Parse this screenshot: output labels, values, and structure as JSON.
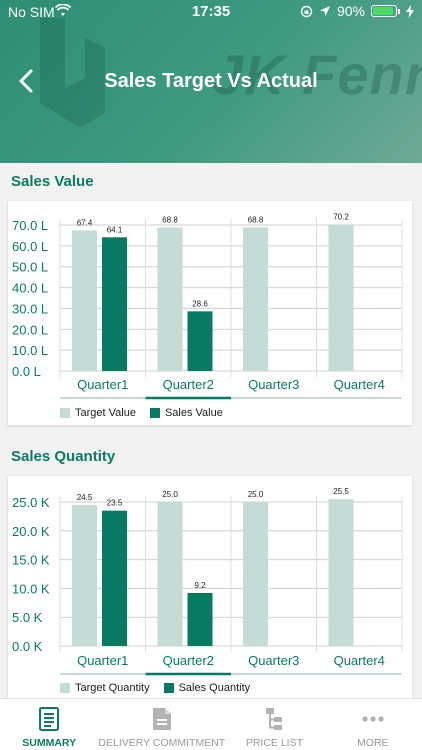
{
  "status": {
    "carrier": "No SIM",
    "time": "17:35",
    "battery": "90%"
  },
  "header": {
    "title": "Sales Target Vs Actual",
    "watermark": "JK Fenner",
    "back_icon": "chevron-left-icon"
  },
  "colors": {
    "target": "#c5dbd6",
    "actual": "#087a62",
    "accent": "#0e7a61"
  },
  "sections": [
    {
      "title": "Sales Value"
    },
    {
      "title": "Sales Quantity"
    }
  ],
  "chart_data": [
    {
      "type": "bar",
      "title": "Sales Value",
      "categories": [
        "Quarter1",
        "Quarter2",
        "Quarter3",
        "Quarter4"
      ],
      "series": [
        {
          "name": "Target Value",
          "values": [
            67.4,
            68.8,
            68.8,
            70.2
          ],
          "labels": [
            "67.4",
            "68.8",
            "68.8",
            "70.2"
          ]
        },
        {
          "name": "Sales Value",
          "values": [
            64.1,
            28.6,
            null,
            null
          ],
          "labels": [
            "64.1",
            "28.6",
            "",
            ""
          ]
        }
      ],
      "ylim": [
        0,
        70
      ],
      "yticks": [
        0,
        10,
        20,
        30,
        40,
        50,
        60,
        70
      ],
      "ytick_labels": [
        "0.0 L",
        "10.0 L",
        "20.0 L",
        "30.0 L",
        "40.0 L",
        "50.0 L",
        "60.0 L",
        "70.0 L"
      ],
      "selected_category": "Quarter2",
      "legend": "bottom-left"
    },
    {
      "type": "bar",
      "title": "Sales Quantity",
      "categories": [
        "Quarter1",
        "Quarter2",
        "Quarter3",
        "Quarter4"
      ],
      "series": [
        {
          "name": "Target Quantity",
          "values": [
            24.5,
            25.0,
            25.0,
            25.5
          ],
          "labels": [
            "24.5",
            "25.0",
            "25.0",
            "25.5"
          ]
        },
        {
          "name": "Sales Quantity",
          "values": [
            23.5,
            9.2,
            null,
            null
          ],
          "labels": [
            "23.5",
            "9.2",
            "",
            ""
          ]
        }
      ],
      "ylim": [
        0,
        25
      ],
      "yticks": [
        0,
        5,
        10,
        15,
        20,
        25
      ],
      "ytick_labels": [
        "0.0 K",
        "5.0 K",
        "10.0 K",
        "15.0 K",
        "20.0 K",
        "25.0 K"
      ],
      "selected_category": "Quarter2",
      "legend": "bottom-left"
    }
  ],
  "nav": [
    {
      "label": "SUMMARY",
      "icon": "document-icon",
      "active": true
    },
    {
      "label": "DELIVERY COMMITMENT",
      "icon": "file-icon",
      "active": false
    },
    {
      "label": "PRICE LIST",
      "icon": "hierarchy-icon",
      "active": false
    },
    {
      "label": "MORE",
      "icon": "more-dots-icon",
      "active": false
    }
  ]
}
